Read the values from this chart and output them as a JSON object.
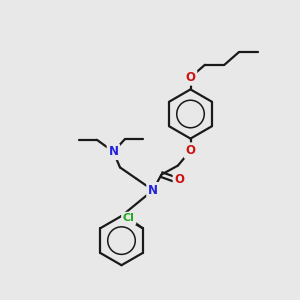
{
  "bg_color": "#e8e8e8",
  "bond_color": "#1a1a1a",
  "N_color": "#2222dd",
  "O_color": "#cc1111",
  "Cl_color": "#22aa22",
  "lw": 1.6,
  "fs": 8.5,
  "figsize": [
    3.0,
    3.0
  ],
  "dpi": 100,
  "xlim": [
    0,
    10
  ],
  "ylim": [
    0,
    10
  ]
}
